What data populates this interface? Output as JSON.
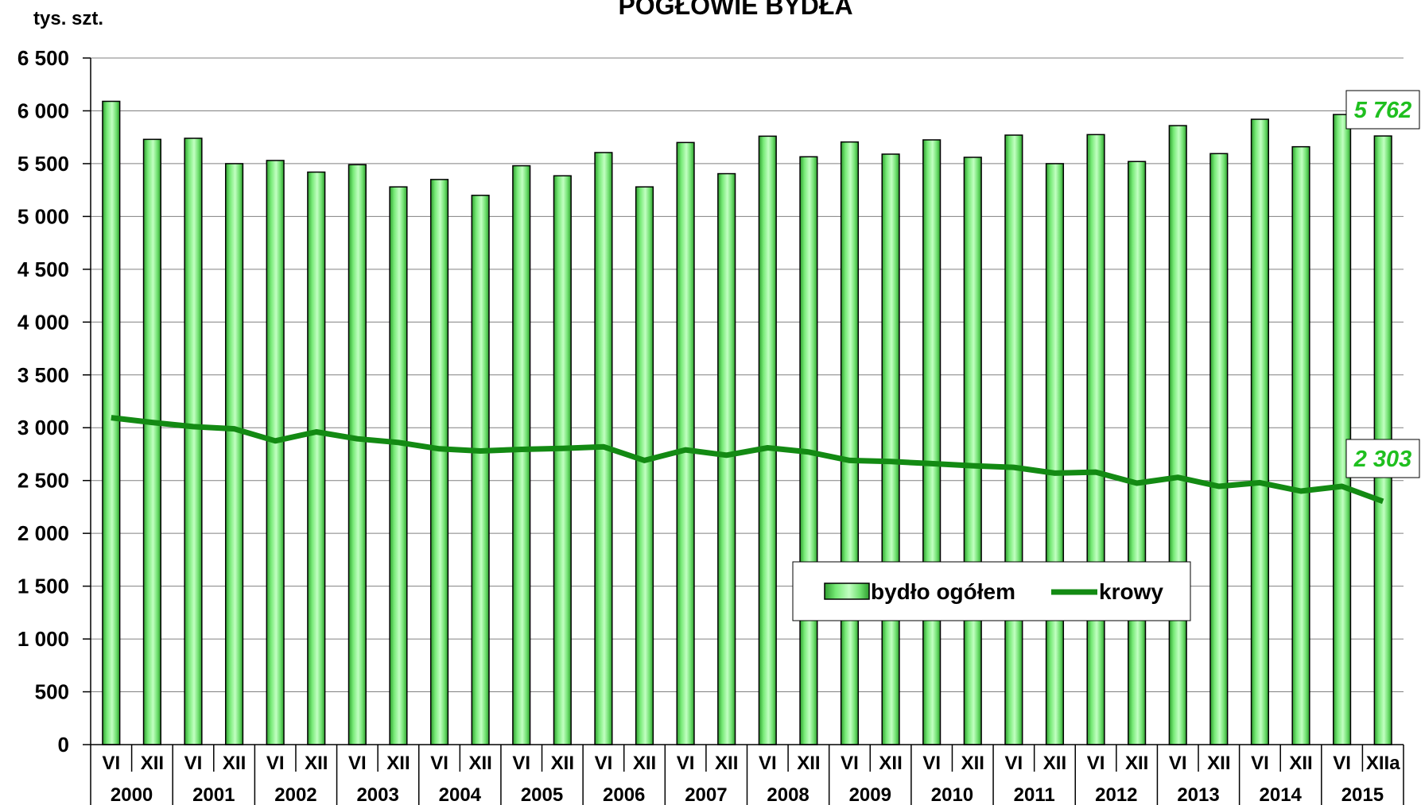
{
  "chart_data": {
    "type": "bar",
    "title": "POGŁOWIE BYDŁA",
    "ylabel": "tys. szt.",
    "ylim": [
      0,
      6500
    ],
    "y_ticks": [
      "0",
      "500",
      "1 000",
      "1 500",
      "2 000",
      "2 500",
      "3 000",
      "3 500",
      "4 000",
      "4 500",
      "5 000",
      "5 500",
      "6 000",
      "6 500"
    ],
    "y_tick_values": [
      0,
      500,
      1000,
      1500,
      2000,
      2500,
      3000,
      3500,
      4000,
      4500,
      5000,
      5500,
      6000,
      6500
    ],
    "categories": [
      "VI",
      "XII",
      "VI",
      "XII",
      "VI",
      "XII",
      "VI",
      "XII",
      "VI",
      "XII",
      "VI",
      "XII",
      "VI",
      "XII",
      "VI",
      "XII",
      "VI",
      "XII",
      "VI",
      "XII",
      "VI",
      "XII",
      "VI",
      "XII",
      "VI",
      "XII",
      "VI",
      "XII",
      "VI",
      "XII",
      "VI",
      "XIIa"
    ],
    "years": [
      "2000",
      "2001",
      "2002",
      "2003",
      "2004",
      "2005",
      "2006",
      "2007",
      "2008",
      "2009",
      "2010",
      "2011",
      "2012",
      "2013",
      "2014",
      "2015"
    ],
    "series": [
      {
        "name": "bydło ogółem",
        "type": "bar",
        "color": "#5ee65e",
        "values": [
          6090,
          5730,
          5740,
          5500,
          5530,
          5420,
          5490,
          5280,
          5350,
          5200,
          5480,
          5385,
          5605,
          5280,
          5700,
          5405,
          5760,
          5565,
          5705,
          5590,
          5725,
          5560,
          5770,
          5500,
          5775,
          5520,
          5860,
          5595,
          5920,
          5660,
          5965,
          5762
        ]
      },
      {
        "name": "krowy",
        "type": "line",
        "color": "#138a13",
        "values": [
          3095,
          3050,
          3010,
          2990,
          2875,
          2960,
          2895,
          2860,
          2800,
          2780,
          2795,
          2805,
          2820,
          2690,
          2790,
          2740,
          2810,
          2770,
          2690,
          2680,
          2660,
          2640,
          2625,
          2570,
          2580,
          2475,
          2530,
          2445,
          2480,
          2400,
          2445,
          2303
        ]
      }
    ],
    "callouts": [
      {
        "text": "5 762",
        "color": "#1fbf1f"
      },
      {
        "text": "2 303",
        "color": "#1fbf1f"
      }
    ],
    "legend_position": "lower-right",
    "grid": true
  }
}
